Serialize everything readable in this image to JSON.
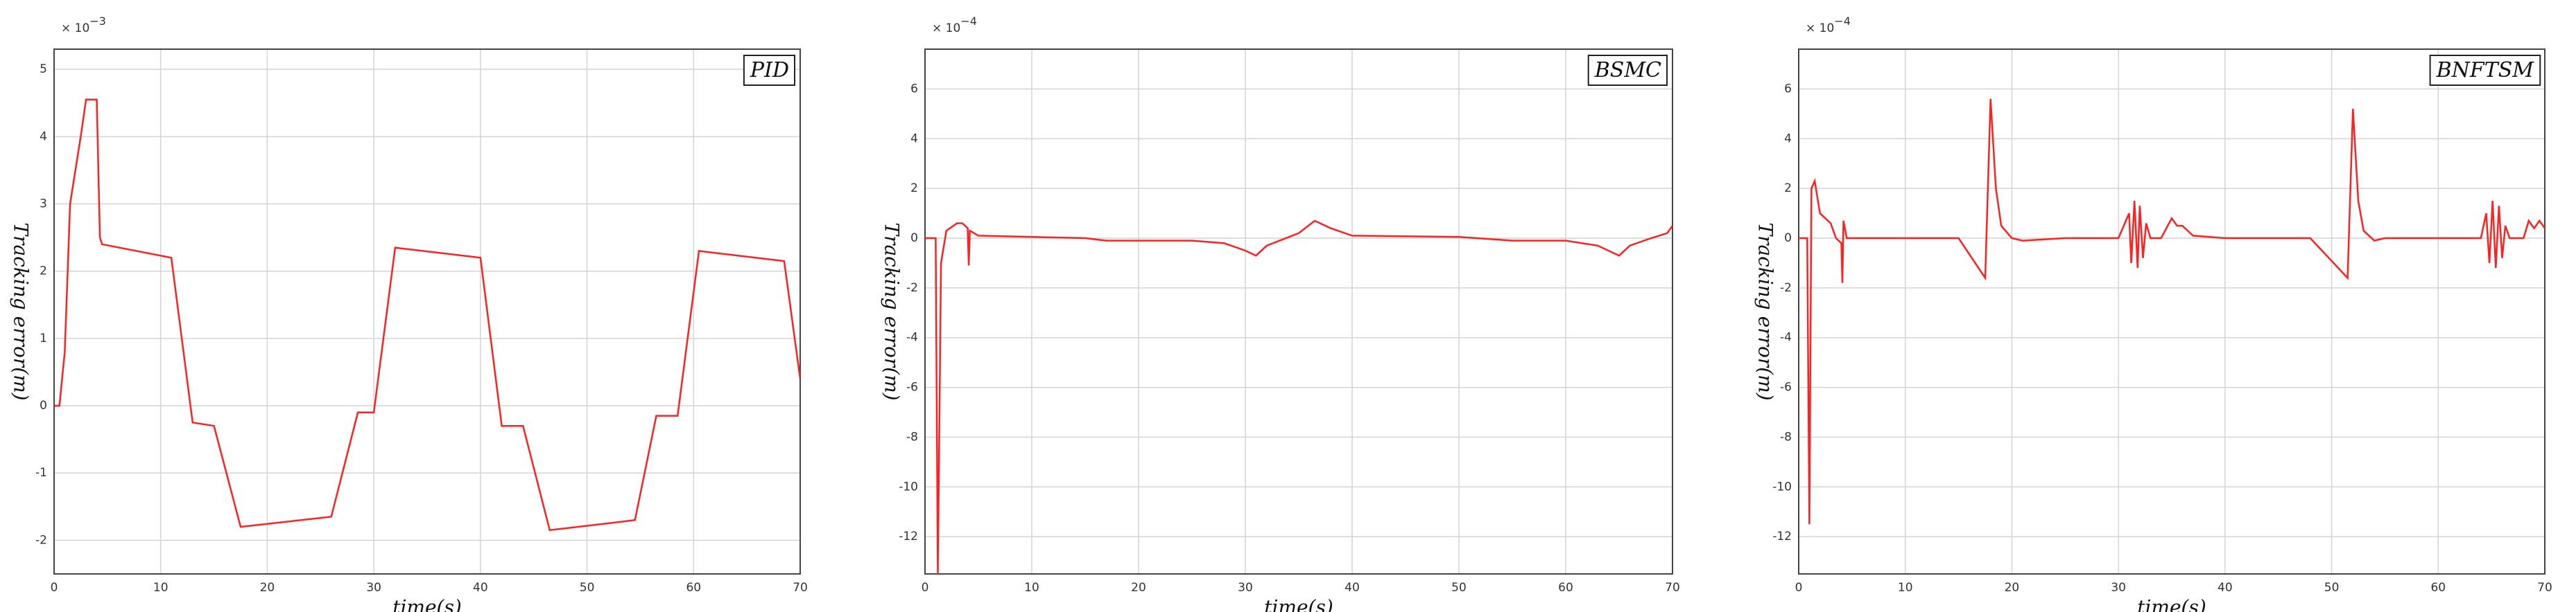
{
  "chart_data": [
    {
      "type": "line",
      "title": "PID",
      "xlabel": "time(s)",
      "ylabel": "Tracking error(m)",
      "ymultiplier": {
        "base": "× 10",
        "exponent": "−3"
      },
      "xlim": [
        0,
        70
      ],
      "xticks": [
        0,
        10,
        20,
        30,
        40,
        50,
        60,
        70
      ],
      "ylim": [
        -2.5,
        5.3
      ],
      "yticks": [
        -2,
        -1,
        0,
        1,
        2,
        3,
        4,
        5
      ],
      "grid": true,
      "x": [
        0,
        0.5,
        1,
        1.5,
        2.5,
        3,
        4,
        4.3,
        4.5,
        11,
        13,
        15,
        17.5,
        26,
        28.5,
        30,
        32,
        40,
        42,
        44,
        46.5,
        54.5,
        56.5,
        58.5,
        60.5,
        68.5,
        70
      ],
      "series": [
        {
          "color": "#ff2020",
          "values": [
            0,
            0,
            0.8,
            3,
            4,
            4.55,
            4.55,
            2.5,
            2.4,
            2.2,
            -0.25,
            -0.3,
            -1.8,
            -1.65,
            -0.1,
            -0.1,
            2.35,
            2.2,
            -0.3,
            -0.3,
            -1.85,
            -1.7,
            -0.15,
            -0.15,
            2.3,
            2.15,
            0.4
          ]
        }
      ]
    },
    {
      "type": "line",
      "title": "BSMC",
      "xlabel": "time(s)",
      "ylabel": "Tracking error(m)",
      "ymultiplier": {
        "base": "× 10",
        "exponent": "−4"
      },
      "xlim": [
        0,
        70
      ],
      "xticks": [
        0,
        10,
        20,
        30,
        40,
        50,
        60,
        70
      ],
      "ylim": [
        -13.5,
        7.6
      ],
      "yticks": [
        -12,
        -10,
        -8,
        -6,
        -4,
        -2,
        0,
        2,
        4,
        6
      ],
      "grid": true,
      "x": [
        0,
        1,
        1.2,
        1.5,
        2,
        3,
        3.5,
        4,
        4.1,
        4.2,
        5,
        10,
        15,
        17,
        20,
        25,
        28,
        30,
        31,
        32,
        35,
        36.5,
        38,
        40,
        50,
        55,
        60,
        63,
        65,
        66,
        68,
        69.5,
        70
      ],
      "series": [
        {
          "color": "#ff2020",
          "values": [
            0,
            0,
            -13.5,
            -1,
            0.3,
            0.6,
            0.6,
            0.4,
            -1.1,
            0.3,
            0.1,
            0.05,
            0,
            -0.1,
            -0.1,
            -0.1,
            -0.2,
            -0.5,
            -0.7,
            -0.3,
            0.2,
            0.7,
            0.4,
            0.1,
            0.05,
            -0.1,
            -0.1,
            -0.3,
            -0.7,
            -0.3,
            0,
            0.2,
            0.5
          ]
        }
      ]
    },
    {
      "type": "line",
      "title": "BNFTSM",
      "xlabel": "time(s)",
      "ylabel": "Tracking error(m)",
      "ymultiplier": {
        "base": "× 10",
        "exponent": "−4"
      },
      "xlim": [
        0,
        70
      ],
      "xticks": [
        0,
        10,
        20,
        30,
        40,
        50,
        60,
        70
      ],
      "ylim": [
        -13.5,
        7.6
      ],
      "yticks": [
        -12,
        -10,
        -8,
        -6,
        -4,
        -2,
        0,
        2,
        4,
        6
      ],
      "grid": true,
      "x": [
        0,
        0.8,
        1,
        1.2,
        1.5,
        2,
        3,
        3.5,
        4,
        4.1,
        4.2,
        4.5,
        10,
        15,
        17.5,
        18,
        18.5,
        19,
        20,
        21,
        25,
        30,
        31,
        31.2,
        31.5,
        31.8,
        32,
        32.3,
        32.6,
        33,
        34,
        35,
        35.5,
        36,
        37,
        40,
        48,
        51.5,
        52,
        52.5,
        53,
        54,
        55,
        64,
        64.5,
        64.8,
        65.1,
        65.4,
        65.7,
        66,
        66.3,
        66.7,
        68,
        68.5,
        69,
        69.5,
        70
      ],
      "series": [
        {
          "color": "#ff2020",
          "values": [
            0,
            0,
            -11.5,
            2,
            2.3,
            1,
            0.6,
            0,
            -0.2,
            -1.8,
            0.7,
            0,
            0,
            0,
            -1.6,
            5.6,
            2,
            0.5,
            0,
            -0.1,
            0,
            0,
            1,
            -1,
            1.5,
            -1.2,
            1.3,
            -0.8,
            0.6,
            0,
            0,
            0.8,
            0.5,
            0.5,
            0.1,
            0,
            0,
            -1.6,
            5.2,
            1.5,
            0.3,
            -0.1,
            0,
            0,
            1,
            -1,
            1.5,
            -1.2,
            1.3,
            -0.8,
            0.5,
            0,
            0,
            0.7,
            0.4,
            0.7,
            0.4
          ]
        }
      ]
    }
  ]
}
